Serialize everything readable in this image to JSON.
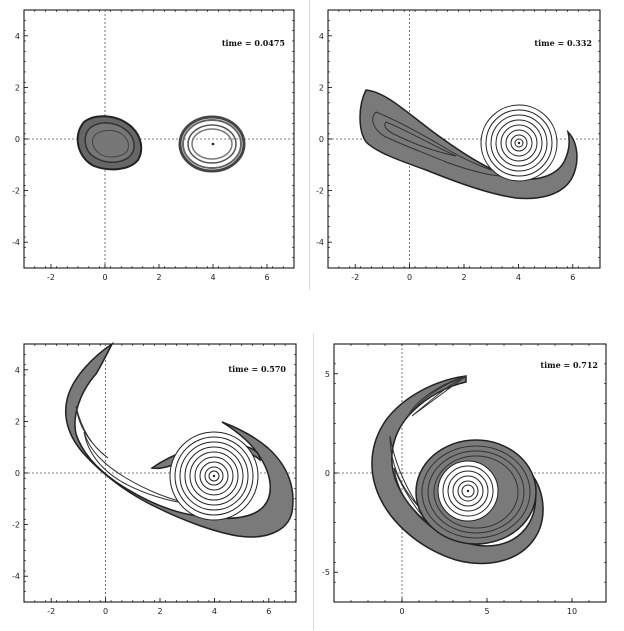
{
  "chart_data": [
    {
      "type": "contour",
      "annotation": "time = 0.0475",
      "xlim": [
        -3,
        7
      ],
      "ylim": [
        -5,
        5
      ],
      "xticks": [
        -2,
        0,
        2,
        4,
        6
      ],
      "yticks": [
        -4,
        -2,
        0,
        2,
        4
      ],
      "x_tick_labels": [
        "-2",
        "0",
        "2",
        "4",
        "6"
      ],
      "y_tick_labels": [
        "-4",
        "-2",
        "0",
        "2",
        "4"
      ],
      "grid": false,
      "reference_lines": {
        "x": 0,
        "y": 0
      }
    },
    {
      "type": "contour",
      "annotation": "time = 0.332",
      "xlim": [
        -3,
        7
      ],
      "ylim": [
        -5,
        5
      ],
      "xticks": [
        -2,
        0,
        2,
        4,
        6
      ],
      "yticks": [
        -4,
        -2,
        0,
        2,
        4
      ],
      "x_tick_labels": [
        "-2",
        "0",
        "2",
        "4",
        "6"
      ],
      "y_tick_labels": [
        "-4",
        "-2",
        "0",
        "2",
        "4"
      ],
      "grid": false,
      "reference_lines": {
        "x": 0,
        "y": 0
      }
    },
    {
      "type": "contour",
      "annotation": "time = 0.570",
      "xlim": [
        -3,
        7
      ],
      "ylim": [
        -5,
        5
      ],
      "xticks": [
        -2,
        0,
        2,
        4,
        6
      ],
      "yticks": [
        -4,
        -2,
        0,
        2,
        4
      ],
      "x_tick_labels": [
        "-2",
        "0",
        "2",
        "4",
        "6"
      ],
      "y_tick_labels": [
        "-4",
        "-2",
        "0",
        "2",
        "4"
      ],
      "grid": false,
      "reference_lines": {
        "x": 0,
        "y": 0
      }
    },
    {
      "type": "contour",
      "annotation": "time = 0.712",
      "xlim": [
        -4,
        12
      ],
      "ylim": [
        -6.5,
        6.5
      ],
      "xticks": [
        0,
        5,
        10
      ],
      "yticks": [
        -5,
        0,
        5
      ],
      "x_tick_labels": [
        "0",
        "5",
        "10"
      ],
      "y_tick_labels": [
        "-5",
        "0",
        "5"
      ],
      "grid": false,
      "reference_lines": {
        "x": 0,
        "y": 0
      }
    }
  ],
  "colors": {
    "fill": "#7a7a7a",
    "contour": "#1a1a1a",
    "frame": "#000000",
    "reference_line": "#555555"
  }
}
